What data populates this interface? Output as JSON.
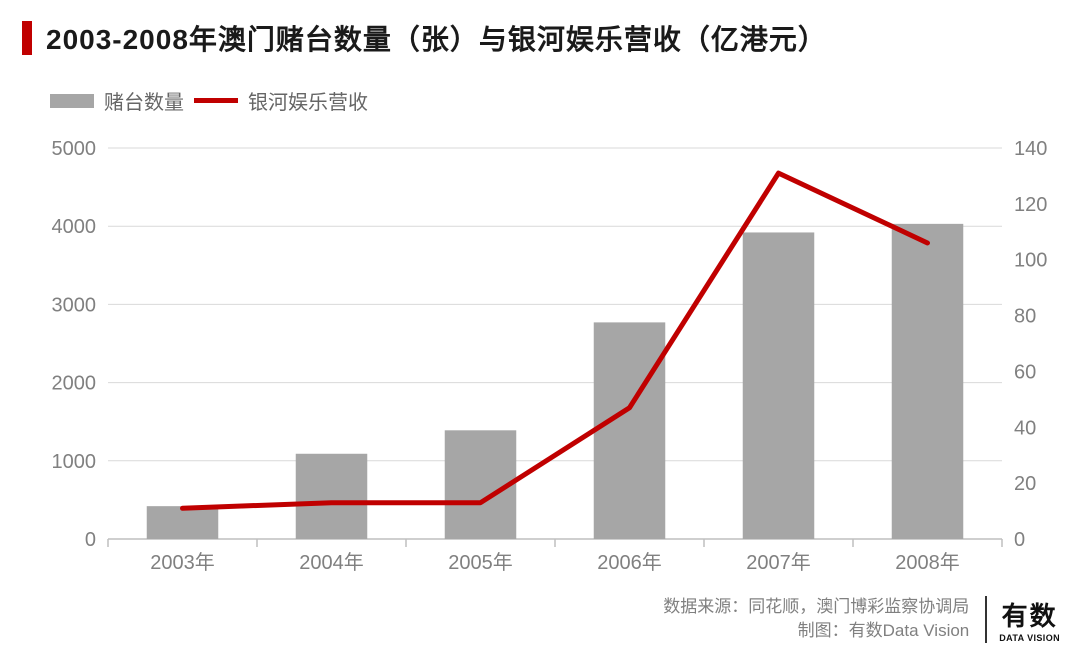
{
  "title": "2003-2008年澳门赌台数量（张）与银河娱乐营收（亿港元）",
  "legend": {
    "bar_label": "赌台数量",
    "line_label": "银河娱乐营收"
  },
  "chart": {
    "type": "bar+line",
    "categories": [
      "2003年",
      "2004年",
      "2005年",
      "2006年",
      "2007年",
      "2008年"
    ],
    "bar_values": [
      420,
      1090,
      1390,
      2770,
      3920,
      4030
    ],
    "line_values": [
      11,
      13,
      13,
      47,
      131,
      106
    ],
    "bar_color": "#a6a6a6",
    "line_color": "#c00000",
    "line_width": 5,
    "left_axis": {
      "min": 0,
      "max": 5000,
      "step": 1000
    },
    "right_axis": {
      "min": 0,
      "max": 140,
      "step": 20
    },
    "grid_color": "#d9d9d9",
    "axis_color": "#bfbfbf",
    "tick_color": "#bfbfbf",
    "label_color": "#808080",
    "label_fontsize": 20,
    "bar_width_ratio": 0.48,
    "background_color": "#ffffff"
  },
  "footer": {
    "source": "数据来源：同花顺，澳门博彩监察协调局",
    "credit": "制图：有数Data Vision",
    "logo_cn": "有数",
    "logo_en": "DATA VISION"
  }
}
